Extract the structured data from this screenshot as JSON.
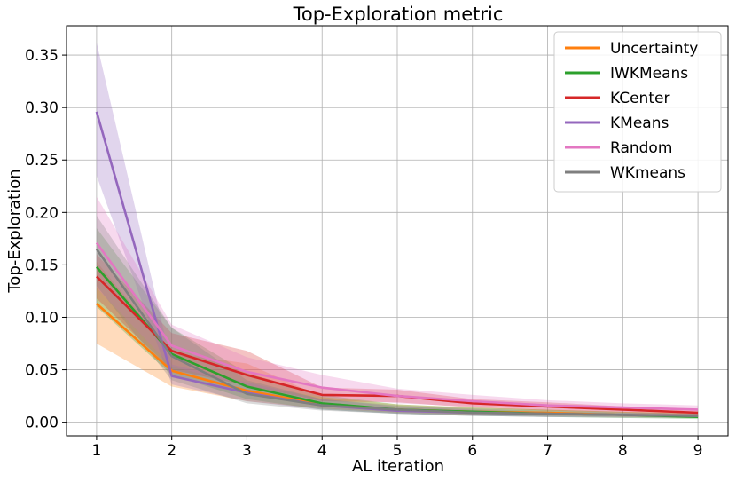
{
  "chart_data": {
    "type": "line",
    "title": "Top-Exploration metric",
    "xlabel": "AL iteration",
    "ylabel": "Top-Exploration",
    "x": [
      1,
      2,
      3,
      4,
      5,
      6,
      7,
      8,
      9
    ],
    "xlim": [
      0.6,
      9.4
    ],
    "ylim": [
      -0.013,
      0.378
    ],
    "xticks": [
      "1",
      "2",
      "3",
      "4",
      "5",
      "6",
      "7",
      "8",
      "9"
    ],
    "yticks": [
      "0.00",
      "0.05",
      "0.10",
      "0.15",
      "0.20",
      "0.25",
      "0.30",
      "0.35"
    ],
    "grid": true,
    "legend_position": "top-right",
    "series": [
      {
        "name": "Uncertainty",
        "color": "#ff7f0e",
        "values": [
          0.113,
          0.049,
          0.03,
          0.017,
          0.012,
          0.01,
          0.009,
          0.007,
          0.006
        ],
        "lower": [
          0.075,
          0.034,
          0.02,
          0.013,
          0.009,
          0.007,
          0.006,
          0.005,
          0.004
        ],
        "upper": [
          0.153,
          0.066,
          0.056,
          0.024,
          0.017,
          0.014,
          0.012,
          0.01,
          0.009
        ]
      },
      {
        "name": "IWKMeans",
        "color": "#2ca02c",
        "values": [
          0.148,
          0.065,
          0.034,
          0.018,
          0.012,
          0.01,
          0.008,
          0.007,
          0.005
        ],
        "lower": [
          0.11,
          0.045,
          0.022,
          0.012,
          0.008,
          0.006,
          0.005,
          0.004,
          0.003
        ],
        "upper": [
          0.185,
          0.09,
          0.047,
          0.026,
          0.017,
          0.014,
          0.012,
          0.01,
          0.008
        ]
      },
      {
        "name": "KCenter",
        "color": "#d62728",
        "values": [
          0.139,
          0.068,
          0.045,
          0.026,
          0.025,
          0.018,
          0.015,
          0.012,
          0.009
        ],
        "lower": [
          0.118,
          0.05,
          0.035,
          0.02,
          0.019,
          0.014,
          0.011,
          0.009,
          0.007
        ],
        "upper": [
          0.16,
          0.085,
          0.068,
          0.033,
          0.031,
          0.022,
          0.019,
          0.015,
          0.012
        ]
      },
      {
        "name": "KMeans",
        "color": "#9467bd",
        "values": [
          0.296,
          0.044,
          0.028,
          0.016,
          0.011,
          0.009,
          0.008,
          0.007,
          0.006
        ],
        "lower": [
          0.235,
          0.036,
          0.02,
          0.012,
          0.008,
          0.006,
          0.005,
          0.005,
          0.004
        ],
        "upper": [
          0.362,
          0.055,
          0.038,
          0.022,
          0.015,
          0.012,
          0.01,
          0.009,
          0.008
        ]
      },
      {
        "name": "Random",
        "color": "#e377c2",
        "values": [
          0.171,
          0.073,
          0.048,
          0.033,
          0.025,
          0.02,
          0.016,
          0.014,
          0.012
        ],
        "lower": [
          0.128,
          0.053,
          0.035,
          0.024,
          0.018,
          0.015,
          0.012,
          0.01,
          0.009
        ],
        "upper": [
          0.215,
          0.093,
          0.062,
          0.045,
          0.032,
          0.026,
          0.021,
          0.018,
          0.016
        ]
      },
      {
        "name": "WKmeans",
        "color": "#7f7f7f",
        "values": [
          0.165,
          0.063,
          0.027,
          0.016,
          0.012,
          0.009,
          0.008,
          0.007,
          0.006
        ],
        "lower": [
          0.13,
          0.04,
          0.018,
          0.011,
          0.008,
          0.006,
          0.005,
          0.004,
          0.004
        ],
        "upper": [
          0.197,
          0.09,
          0.04,
          0.022,
          0.016,
          0.013,
          0.011,
          0.009,
          0.008
        ]
      }
    ]
  }
}
